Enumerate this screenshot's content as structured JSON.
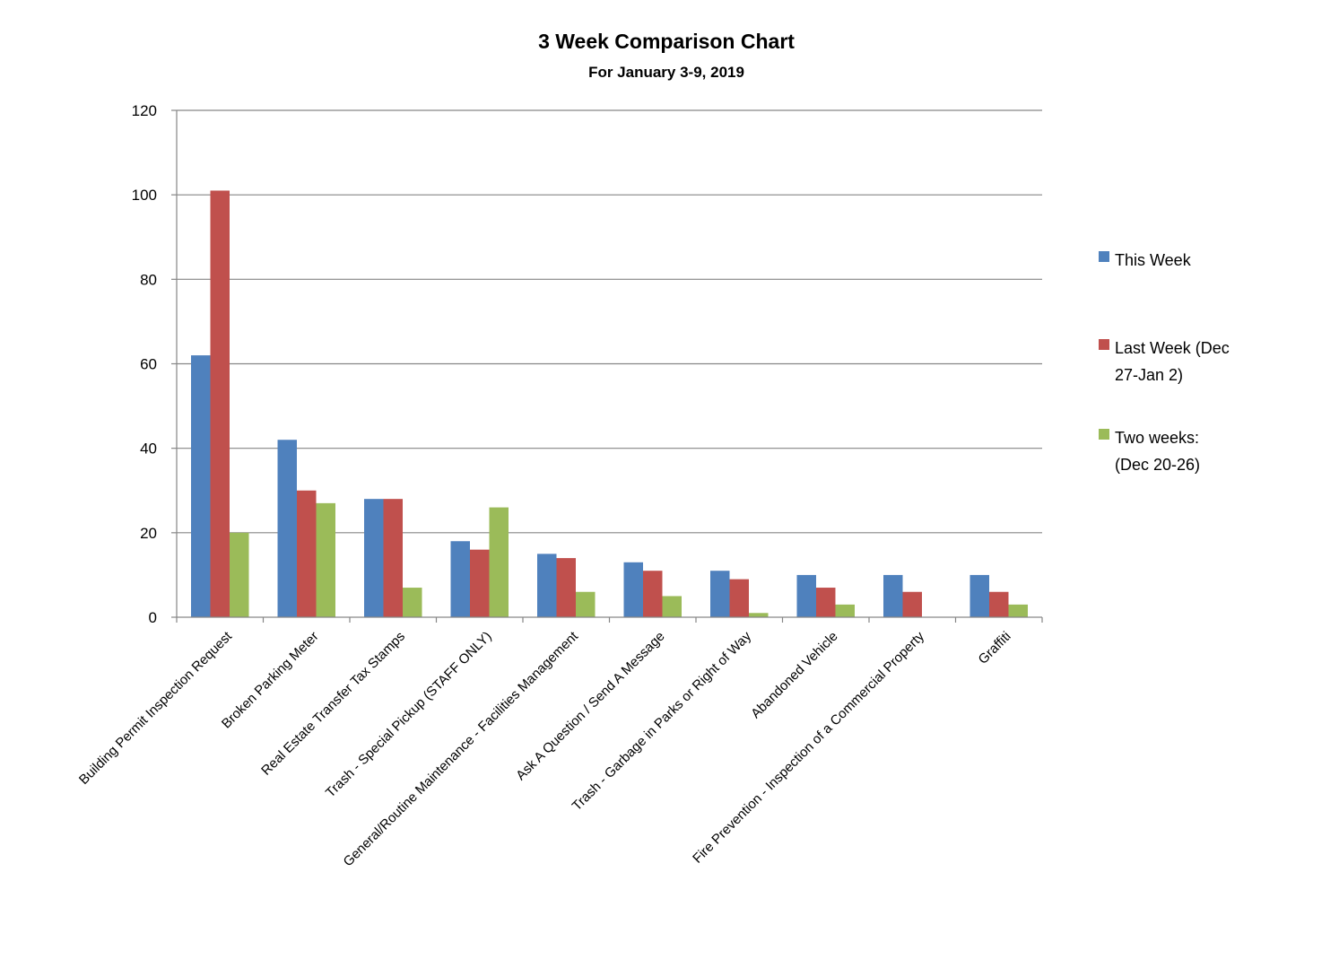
{
  "chart_data": {
    "type": "bar",
    "title": "3 Week Comparison Chart",
    "subtitle": "For January 3-9, 2019",
    "xlabel": "",
    "ylabel": "",
    "ylim": [
      0,
      120
    ],
    "yticks": [
      "0",
      "20",
      "40",
      "60",
      "80",
      "100",
      "120"
    ],
    "grid": true,
    "legend_position": "right",
    "categories": [
      "Building Permit Inspection Request",
      "Broken Parking Meter",
      "Real Estate Transfer Tax Stamps",
      "Trash - Special Pickup (STAFF ONLY)",
      "General/Routine Maintenance - Facilities Management",
      "Ask A Question / Send A Message",
      "Trash - Garbage in Parks or Right of Way",
      "Abandoned Vehicle",
      "Fire Prevention - Inspection of a Commercial Property",
      "Graffiti"
    ],
    "series": [
      {
        "name": "This Week",
        "legend_lines": [
          "This Week"
        ],
        "color": "#4F81BD",
        "values": [
          62,
          42,
          28,
          18,
          15,
          13,
          11,
          10,
          10,
          10
        ]
      },
      {
        "name": "Last Week (Dec 27-Jan 2)",
        "legend_lines": [
          "Last Week (Dec",
          "27-Jan 2)"
        ],
        "color": "#C0504D",
        "values": [
          101,
          30,
          28,
          16,
          14,
          11,
          9,
          7,
          6,
          6
        ]
      },
      {
        "name": "Two weeks: (Dec 20-26)",
        "legend_lines": [
          "Two weeks:",
          "(Dec 20-26)"
        ],
        "color": "#9BBB59",
        "values": [
          20,
          27,
          7,
          26,
          6,
          5,
          1,
          3,
          0,
          3
        ]
      }
    ]
  }
}
